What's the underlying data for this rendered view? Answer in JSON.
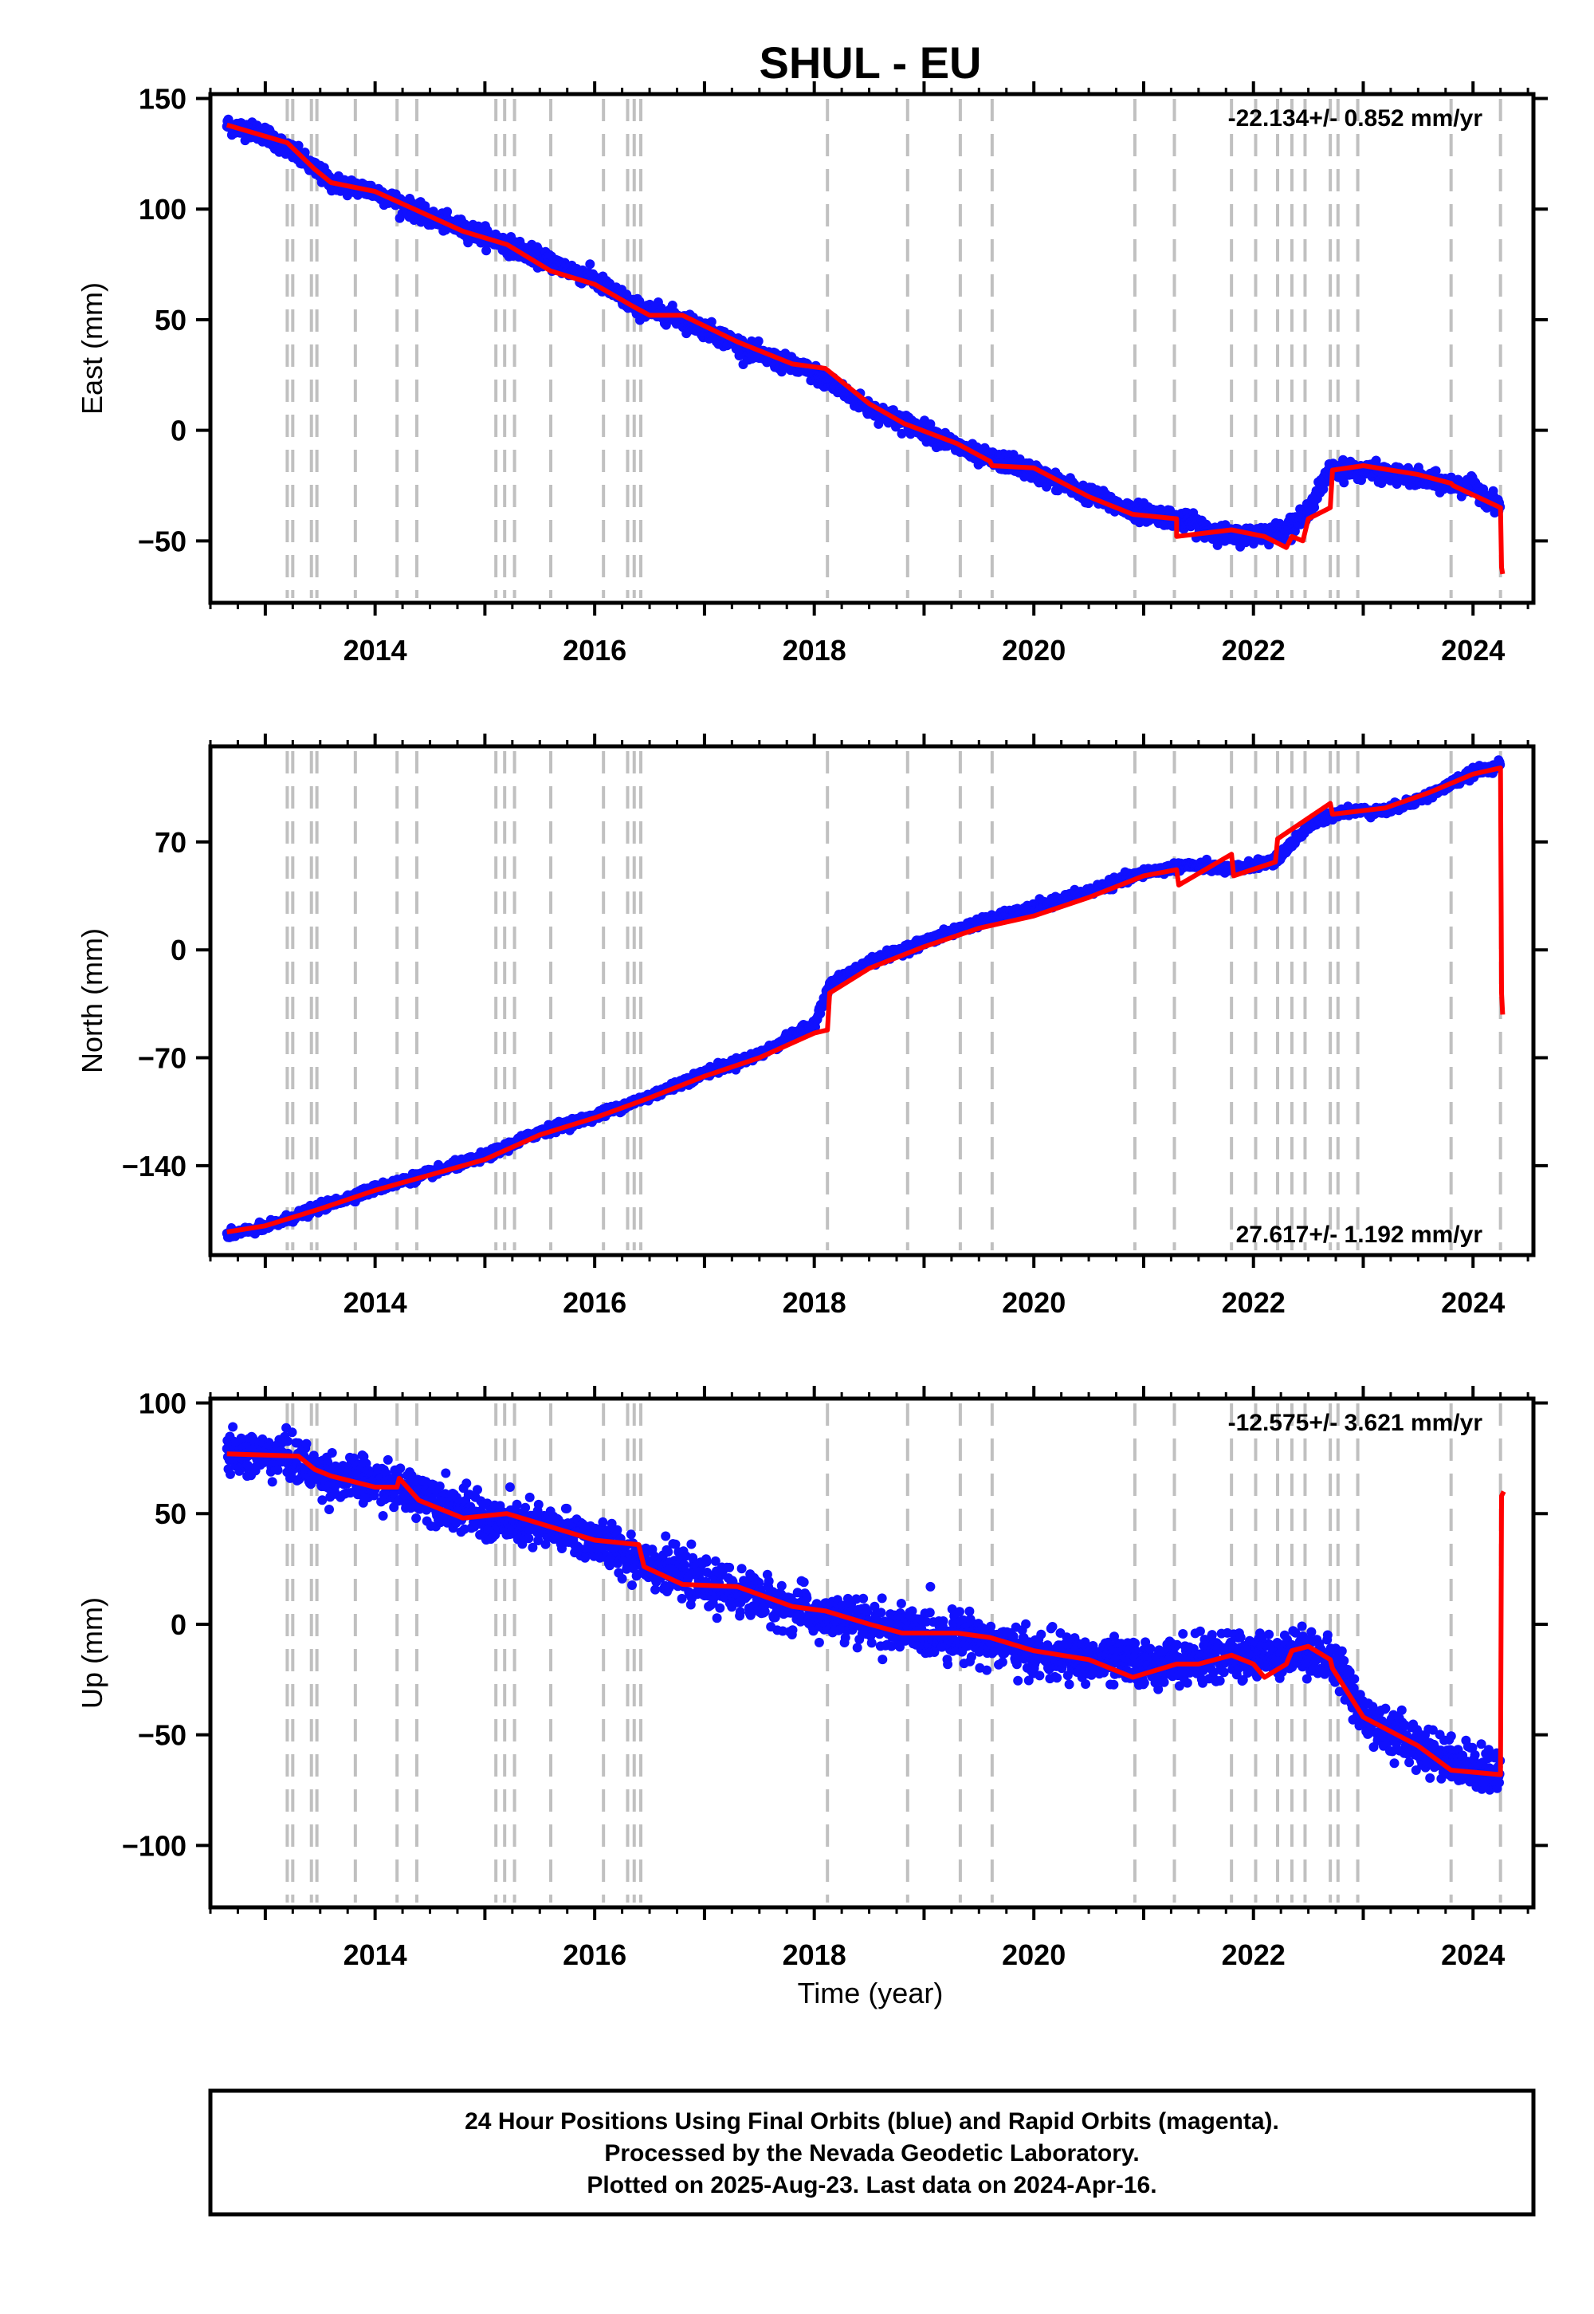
{
  "title": "SHUL - EU",
  "xlabel": "Time (year)",
  "footer": {
    "line1": "24 Hour Positions Using Final Orbits (blue) and Rapid Orbits (magenta).",
    "line2": "Processed by the Nevada Geodetic Laboratory.",
    "line3": "Plotted on 2025-Aug-23. Last data on 2024-Apr-16."
  },
  "colors": {
    "points": "#1010ff",
    "model": "#ff0000",
    "event_lines": "#c0c0c0",
    "frame": "#000000"
  },
  "chart_data": [
    {
      "type": "scatter",
      "ylabel": "East (mm)",
      "rate": "-22.134+/- 0.852 mm/yr",
      "xlim": [
        2012.5,
        2024.55
      ],
      "ylim": [
        -78,
        152
      ],
      "yticks": [
        150,
        100,
        50,
        0,
        -50
      ],
      "ytick_labels": [
        "150",
        "100",
        "50",
        "0",
        "−50"
      ],
      "xticks": [
        2014,
        2016,
        2018,
        2020,
        2022,
        2024
      ],
      "xtick_labels": [
        "2014",
        "2016",
        "2018",
        "2020",
        "2022",
        "2024"
      ],
      "series": [
        {
          "style": "points",
          "trend_x": [
            2012.65,
            2013.0,
            2013.3,
            2013.6,
            2014.0,
            2014.5,
            2015.0,
            2015.5,
            2016.0,
            2016.4,
            2016.7,
            2017.0,
            2017.5,
            2018.0,
            2018.5,
            2019.0,
            2019.5,
            2019.8,
            2020.3,
            2020.8,
            2021.3,
            2021.8,
            2022.2,
            2022.45,
            2022.7,
            2023.0,
            2023.5,
            2024.0,
            2024.25
          ],
          "trend_y": [
            138,
            134,
            124,
            112,
            108,
            96,
            88,
            78,
            68,
            55,
            52,
            46,
            34,
            26,
            10,
            0,
            -12,
            -15,
            -25,
            -35,
            -40,
            -48,
            -46,
            -40,
            -18,
            -18,
            -22,
            -26,
            -34
          ],
          "noise": 3.5
        },
        {
          "style": "model",
          "x": [
            2012.65,
            2013.2,
            2013.45,
            2013.6,
            2014.0,
            2014.4,
            2014.8,
            2015.2,
            2015.6,
            2016.0,
            2016.35,
            2016.5,
            2016.8,
            2017.3,
            2017.8,
            2018.1,
            2018.5,
            2018.82,
            2019.3,
            2019.6,
            2019.62,
            2020.0,
            2020.5,
            2020.9,
            2021.3,
            2021.3,
            2021.8,
            2022.1,
            2022.3,
            2022.35,
            2022.45,
            2022.5,
            2022.7,
            2022.72,
            2023.0,
            2023.5,
            2023.8,
            2023.82,
            2024.25,
            2024.26,
            2024.27
          ],
          "y": [
            138,
            130,
            118,
            112,
            108,
            99,
            90,
            84,
            72,
            66,
            56,
            52,
            52,
            40,
            30,
            28,
            12,
            3,
            -6,
            -14,
            -16,
            -17,
            -30,
            -38,
            -40,
            -48,
            -45,
            -48,
            -53,
            -48,
            -50,
            -40,
            -35,
            -18,
            -16,
            -20,
            -24,
            -25,
            -35,
            -62,
            -65
          ]
        }
      ]
    },
    {
      "type": "scatter",
      "ylabel": "North (mm)",
      "rate": "27.617+/- 1.192 mm/yr",
      "xlim": [
        2012.5,
        2024.55
      ],
      "ylim": [
        -198,
        132
      ],
      "yticks": [
        70,
        0,
        -70,
        -140
      ],
      "ytick_labels": [
        "70",
        "0",
        "−70",
        "−140"
      ],
      "xticks": [
        2014,
        2016,
        2018,
        2020,
        2022,
        2024
      ],
      "xtick_labels": [
        "2014",
        "2016",
        "2018",
        "2020",
        "2022",
        "2024"
      ],
      "series": [
        {
          "style": "points",
          "trend_x": [
            2012.65,
            2013.0,
            2013.5,
            2014.0,
            2014.5,
            2015.0,
            2015.5,
            2016.0,
            2016.5,
            2017.0,
            2017.5,
            2018.0,
            2018.15,
            2018.5,
            2019.0,
            2019.5,
            2020.0,
            2020.5,
            2021.0,
            2021.4,
            2021.8,
            2022.2,
            2022.5,
            2022.8,
            2023.2,
            2023.6,
            2024.0,
            2024.25
          ],
          "trend_y": [
            -185,
            -180,
            -167,
            -155,
            -145,
            -134,
            -118,
            -108,
            -95,
            -80,
            -68,
            -48,
            -22,
            -8,
            5,
            18,
            27,
            38,
            50,
            55,
            52,
            58,
            80,
            90,
            90,
            100,
            115,
            120
          ],
          "noise": 2.5
        },
        {
          "style": "model",
          "x": [
            2012.65,
            2013.0,
            2013.5,
            2014.0,
            2014.5,
            2015.0,
            2015.5,
            2016.0,
            2016.5,
            2017.0,
            2017.5,
            2018.0,
            2018.12,
            2018.14,
            2018.5,
            2019.0,
            2019.5,
            2020.0,
            2020.5,
            2021.0,
            2021.3,
            2021.32,
            2021.8,
            2021.82,
            2022.2,
            2022.22,
            2022.7,
            2022.72,
            2023.2,
            2023.6,
            2024.0,
            2024.25,
            2024.26,
            2024.27
          ],
          "y": [
            -183,
            -179,
            -168,
            -156,
            -146,
            -136,
            -120,
            -109,
            -96,
            -82,
            -70,
            -54,
            -52,
            -28,
            -12,
            2,
            14,
            22,
            34,
            48,
            52,
            42,
            62,
            48,
            57,
            72,
            95,
            88,
            92,
            102,
            114,
            118,
            -28,
            -42
          ]
        }
      ]
    },
    {
      "type": "scatter",
      "ylabel": "Up (mm)",
      "rate": "-12.575+/- 3.621 mm/yr",
      "xlim": [
        2012.5,
        2024.55
      ],
      "ylim": [
        -128,
        102
      ],
      "yticks": [
        100,
        50,
        0,
        -50,
        -100
      ],
      "ytick_labels": [
        "100",
        "50",
        "0",
        "−50",
        "−100"
      ],
      "xticks": [
        2014,
        2016,
        2018,
        2020,
        2022,
        2024
      ],
      "xtick_labels": [
        "2014",
        "2016",
        "2018",
        "2020",
        "2022",
        "2024"
      ],
      "series": [
        {
          "style": "points",
          "trend_x": [
            2012.65,
            2013.2,
            2013.5,
            2014.0,
            2014.5,
            2015.0,
            2015.5,
            2016.0,
            2016.5,
            2017.0,
            2017.5,
            2018.0,
            2018.5,
            2019.0,
            2019.5,
            2020.0,
            2020.5,
            2021.0,
            2021.5,
            2022.0,
            2022.5,
            2022.8,
            2023.0,
            2023.5,
            2024.0,
            2024.25
          ],
          "trend_y": [
            77,
            76,
            68,
            64,
            58,
            47,
            44,
            38,
            28,
            18,
            12,
            4,
            0,
            -4,
            -6,
            -14,
            -16,
            -18,
            -16,
            -14,
            -12,
            -20,
            -42,
            -55,
            -65,
            -68
          ],
          "noise": 9
        },
        {
          "style": "model",
          "x": [
            2012.65,
            2013.3,
            2013.45,
            2013.6,
            2014.0,
            2014.2,
            2014.22,
            2014.4,
            2014.8,
            2015.2,
            2015.6,
            2016.0,
            2016.4,
            2016.45,
            2016.8,
            2017.3,
            2017.8,
            2018.1,
            2018.5,
            2018.8,
            2019.3,
            2019.6,
            2020.0,
            2020.5,
            2020.9,
            2021.3,
            2021.5,
            2021.8,
            2022.0,
            2022.1,
            2022.3,
            2022.35,
            2022.5,
            2022.7,
            2022.72,
            2023.0,
            2023.5,
            2023.8,
            2024.25,
            2024.26,
            2024.28
          ],
          "y": [
            77,
            76,
            70,
            67,
            62,
            62,
            66,
            56,
            48,
            50,
            44,
            38,
            36,
            26,
            18,
            17,
            8,
            6,
            0,
            -4,
            -4,
            -6,
            -12,
            -16,
            -24,
            -18,
            -18,
            -14,
            -18,
            -24,
            -18,
            -12,
            -10,
            -16,
            -20,
            -42,
            -55,
            -66,
            -68,
            58,
            60
          ]
        }
      ]
    }
  ],
  "event_lines": [
    2013.2,
    2013.25,
    2013.42,
    2013.47,
    2013.82,
    2014.2,
    2014.38,
    2015.1,
    2015.18,
    2015.27,
    2015.6,
    2016.08,
    2016.3,
    2016.36,
    2016.42,
    2018.12,
    2018.85,
    2019.33,
    2019.62,
    2020.92,
    2021.28,
    2021.8,
    2022.02,
    2022.22,
    2022.35,
    2022.47,
    2022.7,
    2022.77,
    2022.95,
    2023.8,
    2024.25
  ]
}
